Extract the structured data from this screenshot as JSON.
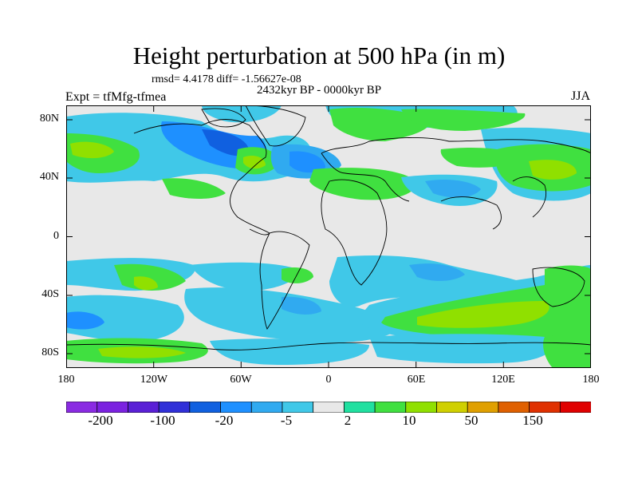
{
  "title": "Height perturbation at 500 hPa (in m)",
  "stats_line": "rmsd= 4.4178 diff= -1.56627e-08",
  "experiment_label": "Expt = tfMfg-tfmea",
  "period_label": "2432kyr BP - 0000kyr BP",
  "season_label": "JJA",
  "lat_labels": [
    "80N",
    "40N",
    "0",
    "40S",
    "80S"
  ],
  "lon_labels": [
    "180",
    "120W",
    "60W",
    "0",
    "60E",
    "120E",
    "180"
  ],
  "colorbar": {
    "colors": [
      "#8a2be2",
      "#7b22e0",
      "#5a20d6",
      "#3030d8",
      "#1060e0",
      "#1e90ff",
      "#30aaf0",
      "#40c8e8",
      "#e8e8e8",
      "#20e0a0",
      "#40e040",
      "#90e000",
      "#d0d000",
      "#e0a000",
      "#e06000",
      "#e03000",
      "#e00000"
    ],
    "labels": [
      "-200",
      "-100",
      "-20",
      "-5",
      "2",
      "10",
      "50",
      "150"
    ]
  },
  "map_colors": {
    "background": "#e8e8e8",
    "light_blue": "#30aaf0",
    "blue": "#1e90ff",
    "dark_blue": "#1060e0",
    "cyan": "#40c8e8",
    "green": "#40e040",
    "teal": "#20e0a0",
    "yellow_green": "#90e000",
    "yellow": "#d0d000"
  }
}
